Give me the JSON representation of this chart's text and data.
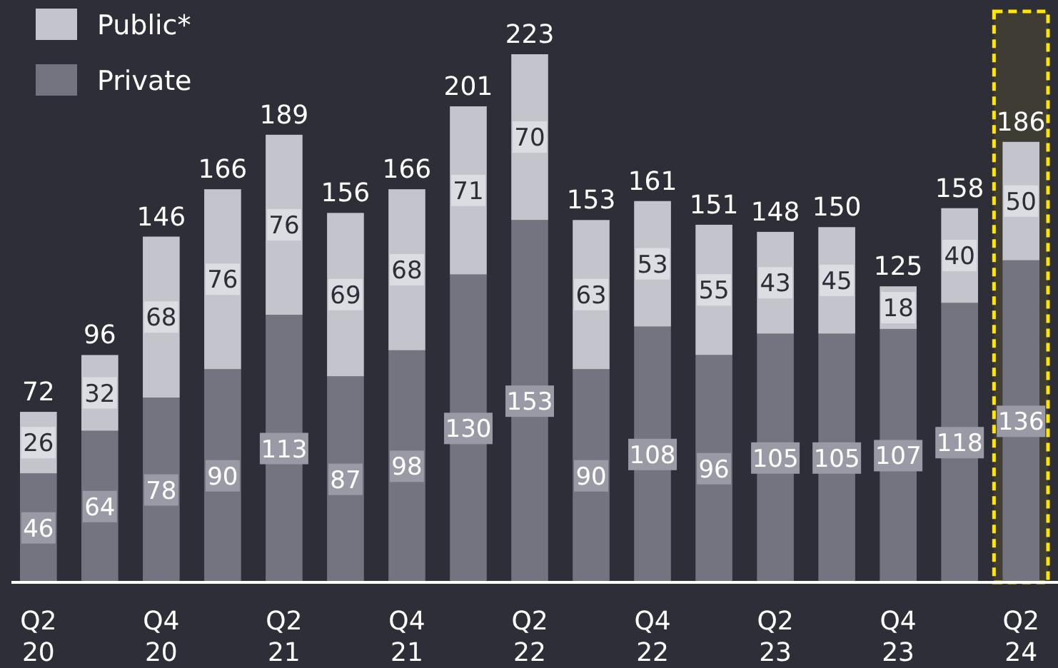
{
  "chart_data": {
    "type": "bar",
    "stacked": true,
    "data_labels": true,
    "legend": "top left",
    "categories": [
      "Q2 20",
      null,
      "Q4 20",
      null,
      "Q2 21",
      null,
      "Q4 21",
      null,
      "Q2 22",
      null,
      "Q4 22",
      null,
      "Q2 23",
      null,
      "Q4 23",
      null,
      "Q2 24"
    ],
    "series": [
      {
        "name": "Private",
        "color": "#747480",
        "values": [
          46,
          64,
          78,
          90,
          113,
          87,
          98,
          130,
          153,
          90,
          108,
          96,
          105,
          105,
          107,
          118,
          136
        ]
      },
      {
        "name": "Public*",
        "color": "#c4c4cd",
        "values": [
          26,
          32,
          68,
          76,
          76,
          69,
          68,
          71,
          70,
          63,
          53,
          55,
          43,
          45,
          18,
          40,
          50
        ]
      }
    ],
    "totals": [
      "72",
      "96",
      "146",
      "166",
      "189",
      "156",
      "166",
      "201",
      "223",
      "153",
      "161",
      "151",
      "148",
      "150",
      "125",
      "158",
      "186"
    ],
    "bands": [
      {
        "axis": "x",
        "from": "Q2 24",
        "to": "Q2 24",
        "color": "#ffe600"
      }
    ]
  }
}
